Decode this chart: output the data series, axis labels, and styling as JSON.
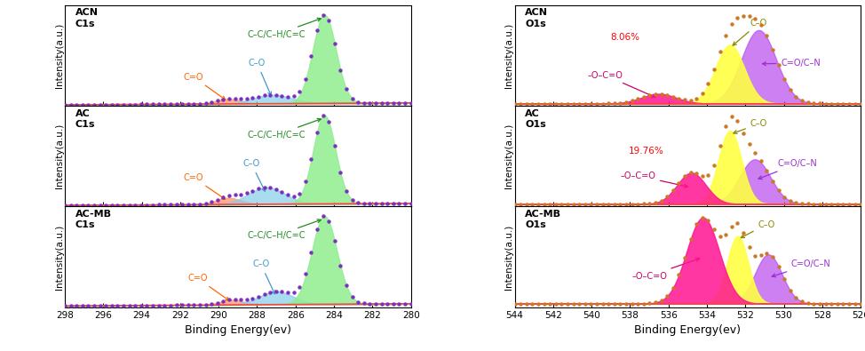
{
  "c1s_xlabel": "Binding Energy(ev)",
  "o1s_xlabel": "Binding Energy(ev)",
  "ylabel": "Intensity(a.u.)",
  "panels_left": [
    "ACN\nC1s",
    "AC\nC1s",
    "AC-MB\nC1s"
  ],
  "panels_right": [
    "ACN\nO1s",
    "AC\nO1s",
    "AC-MB\nO1s"
  ],
  "acn_percent": "8.06%",
  "ac_percent": "19.76%",
  "dot_color_c1s": "#7B2FBE",
  "dot_color_o1s": "#CC7722",
  "baseline_color": "#FF4444",
  "green_fill": "#90EE90",
  "blue_fill": "#87CEEB",
  "orange_fill": "#FFA07A",
  "pink_fill": "#FF1493",
  "yellow_fill": "#FFFF44",
  "purple_fill": "#BB55EE",
  "annotation_fontsize": 7.0,
  "c1s_params": [
    {
      "co": [
        289.5,
        0.055,
        0.65
      ],
      "ether": [
        287.2,
        0.1,
        1.0
      ],
      "cc": [
        284.5,
        1.0,
        0.6
      ]
    },
    {
      "co": [
        289.5,
        0.07,
        0.65
      ],
      "ether": [
        287.5,
        0.18,
        0.95
      ],
      "cc": [
        284.5,
        0.95,
        0.58
      ]
    },
    {
      "co": [
        289.3,
        0.05,
        0.6
      ],
      "ether": [
        287.0,
        0.13,
        0.9
      ],
      "cc": [
        284.5,
        0.88,
        0.65
      ]
    }
  ],
  "o1s_params": [
    {
      "oco": [
        536.5,
        0.12,
        0.9
      ],
      "co": [
        532.8,
        0.72,
        0.75
      ],
      "cn": [
        531.3,
        0.9,
        0.9
      ]
    },
    {
      "oco": [
        534.8,
        0.35,
        0.75
      ],
      "co": [
        532.8,
        0.82,
        0.6
      ],
      "cn": [
        531.5,
        0.5,
        0.8
      ]
    },
    {
      "oco": [
        534.2,
        0.7,
        0.85
      ],
      "co": [
        532.4,
        0.55,
        0.55
      ],
      "cn": [
        530.8,
        0.4,
        0.7
      ]
    }
  ]
}
